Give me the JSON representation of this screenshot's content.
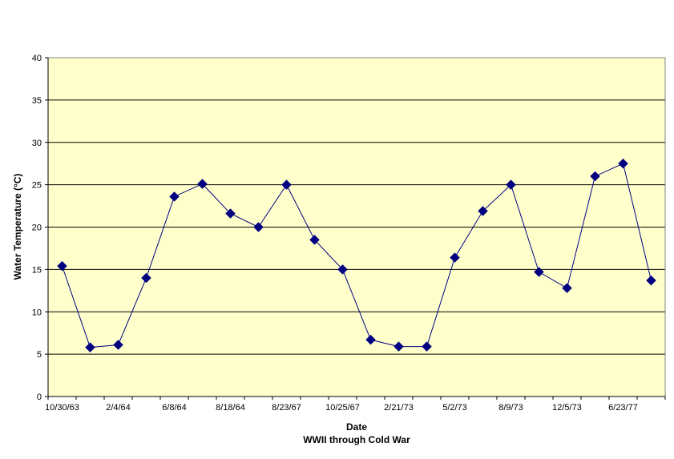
{
  "chart_data": {
    "type": "line",
    "title": "",
    "xlabel": "Date",
    "xlabel_sub": "WWII through Cold War",
    "ylabel": "Water Temperature (°C)",
    "ylim": [
      0,
      40
    ],
    "yticks": [
      0,
      5,
      10,
      15,
      20,
      25,
      30,
      35,
      40
    ],
    "grid": "horizontal",
    "legend": "none",
    "x": [
      "10/30/63",
      "",
      "2/4/64",
      "",
      "6/8/64",
      "",
      "8/18/64",
      "",
      "8/23/67",
      "",
      "10/25/67",
      "",
      "2/21/73",
      "",
      "5/2/73",
      "",
      "8/9/73",
      "",
      "12/5/73",
      "",
      "6/23/77",
      ""
    ],
    "series": [
      {
        "values": [
          15.4,
          5.8,
          6.1,
          14.0,
          23.6,
          25.1,
          21.6,
          20.0,
          25.0,
          18.5,
          15.0,
          6.7,
          5.9,
          5.9,
          16.4,
          21.9,
          25.0,
          14.7,
          12.8,
          26.0,
          27.5,
          13.7
        ]
      }
    ],
    "colors": {
      "plot_bg": "#FFFFCC",
      "line": "#000080",
      "marker": "#000080",
      "grid": "#000000",
      "axis": "#808080"
    }
  }
}
